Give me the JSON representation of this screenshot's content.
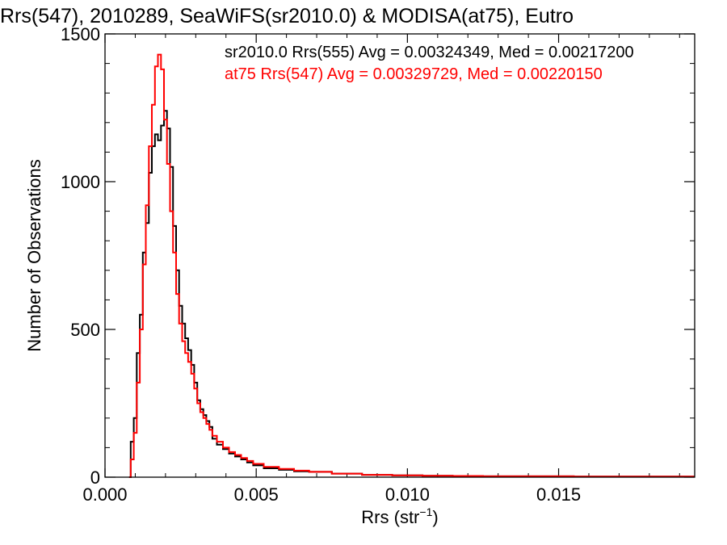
{
  "chart_data": {
    "type": "line",
    "title": "Rrs(547), 2010289, SeaWiFS(sr2010.0) & MODISA(at75), Eutro",
    "xlabel": "Rrs (str",
    "xlabel_sup": "−1",
    "xlabel_close": ")",
    "ylabel": "Number of Observations",
    "xlim": [
      0.0,
      0.0195
    ],
    "ylim": [
      0,
      1500
    ],
    "grid": false,
    "legend_position": "top-right",
    "x_ticks": [
      0.0,
      0.005,
      0.01,
      0.015
    ],
    "x_tick_labels": [
      "0.000",
      "0.005",
      "0.010",
      "0.015"
    ],
    "y_ticks": [
      0,
      500,
      1000,
      1500
    ],
    "y_tick_labels": [
      "0",
      "500",
      "1000",
      "1500"
    ],
    "series": [
      {
        "name": "sr2010.0 Rrs(555) Avg = 0.00324349, Med = 0.00217200",
        "color": "#000000",
        "x": [
          0.0008,
          0.0009,
          0.001,
          0.0011,
          0.0012,
          0.0013,
          0.0014,
          0.0015,
          0.0016,
          0.0017,
          0.0018,
          0.0019,
          0.002,
          0.0021,
          0.0022,
          0.0023,
          0.0024,
          0.0025,
          0.0026,
          0.0027,
          0.0028,
          0.0029,
          0.003,
          0.0031,
          0.0032,
          0.0033,
          0.0034,
          0.0035,
          0.0036,
          0.0038,
          0.004,
          0.0042,
          0.0044,
          0.0046,
          0.0048,
          0.005,
          0.0055,
          0.006,
          0.0065,
          0.007,
          0.008,
          0.009,
          0.01,
          0.011,
          0.012,
          0.013,
          0.014,
          0.015,
          0.016,
          0.017,
          0.018,
          0.0195
        ],
        "y": [
          0,
          120,
          200,
          420,
          550,
          760,
          860,
          1030,
          1120,
          1160,
          1140,
          1190,
          1240,
          1180,
          1050,
          850,
          700,
          580,
          520,
          470,
          430,
          380,
          320,
          260,
          230,
          210,
          190,
          170,
          130,
          110,
          95,
          80,
          70,
          60,
          50,
          40,
          30,
          25,
          20,
          18,
          12,
          8,
          6,
          5,
          4,
          3,
          3,
          3,
          2,
          2,
          2,
          2
        ]
      },
      {
        "name": "at75 Rrs(547) Avg = 0.00329729, Med = 0.00220150",
        "color": "#ff0000",
        "x": [
          0.0008,
          0.0009,
          0.001,
          0.0011,
          0.0012,
          0.0013,
          0.0014,
          0.0015,
          0.0016,
          0.0017,
          0.0018,
          0.0019,
          0.002,
          0.0021,
          0.0022,
          0.0023,
          0.0024,
          0.0025,
          0.0026,
          0.0027,
          0.0028,
          0.0029,
          0.003,
          0.0031,
          0.0032,
          0.0033,
          0.0034,
          0.0035,
          0.0036,
          0.0038,
          0.004,
          0.0042,
          0.0044,
          0.0046,
          0.0048,
          0.005,
          0.0055,
          0.006,
          0.0065,
          0.007,
          0.008,
          0.009,
          0.01,
          0.011,
          0.012,
          0.013,
          0.014,
          0.015,
          0.016,
          0.017,
          0.018,
          0.0195
        ],
        "y": [
          0,
          60,
          150,
          320,
          500,
          720,
          920,
          1120,
          1260,
          1390,
          1430,
          1380,
          1210,
          1060,
          900,
          760,
          620,
          520,
          460,
          420,
          390,
          350,
          300,
          250,
          220,
          200,
          180,
          160,
          140,
          120,
          100,
          85,
          75,
          65,
          55,
          45,
          35,
          28,
          22,
          18,
          12,
          8,
          6,
          5,
          4,
          3,
          3,
          3,
          2,
          2,
          2,
          2
        ]
      }
    ]
  }
}
